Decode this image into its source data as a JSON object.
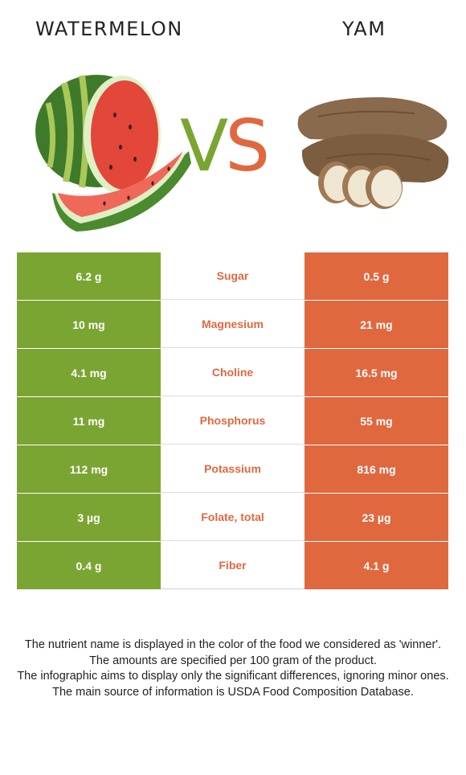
{
  "foods": {
    "left": {
      "name": "WATERMELON",
      "color": "#7ba532"
    },
    "right": {
      "name": "YAM",
      "color": "#e0683f"
    }
  },
  "vs": {
    "v": "V",
    "s": "S"
  },
  "nutrients": [
    {
      "name": "Sugar",
      "left": "6.2 g",
      "right": "0.5 g",
      "winner": "right"
    },
    {
      "name": "Magnesium",
      "left": "10 mg",
      "right": "21 mg",
      "winner": "right"
    },
    {
      "name": "Choline",
      "left": "4.1 mg",
      "right": "16.5 mg",
      "winner": "right"
    },
    {
      "name": "Phosphorus",
      "left": "11 mg",
      "right": "55 mg",
      "winner": "right"
    },
    {
      "name": "Potassium",
      "left": "112 mg",
      "right": "816 mg",
      "winner": "right"
    },
    {
      "name": "Folate, total",
      "left": "3 µg",
      "right": "23 µg",
      "winner": "right"
    },
    {
      "name": "Fiber",
      "left": "0.4 g",
      "right": "4.1 g",
      "winner": "right"
    }
  ],
  "notes": [
    "The nutrient name is displayed in the color of the food we considered as 'winner'.",
    "The amounts are specified per 100 gram of the product.",
    "The infographic aims to display only the significant differences, ignoring minor ones.",
    "The main source of information is USDA Food Composition Database."
  ]
}
